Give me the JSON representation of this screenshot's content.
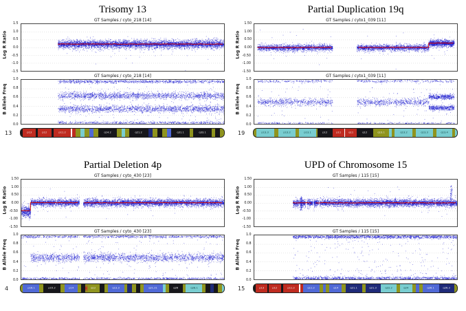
{
  "colors": {
    "point_blue": "#1212cc",
    "median_red": "#cf0f0f",
    "grid": "#c9c9c9",
    "plot_border": "#444444",
    "ideogram_palette": {
      "olive": "#8f941e",
      "cyan": "#79cdd0",
      "blue": "#5069d6",
      "navy": "#1e2a78",
      "black": "#17171b",
      "red": "#bf2b20",
      "white": "#ffffff"
    }
  },
  "chart_data": [
    {
      "id": "trisomy-13",
      "type": "scatter",
      "title": "Trisomy 13",
      "chromosome": "13",
      "lrr": {
        "header": "GT Samples / cyto_218 [14]",
        "ylabel": "Log R Ratio",
        "ylim": [
          -1.5,
          1.5
        ],
        "clampY": [
          -1.45,
          1.45
        ],
        "yticks": [
          "1.5",
          "1.0",
          "0.5",
          "0.0",
          "-0.5",
          "-1.0",
          "-1.5"
        ],
        "gaps": [],
        "clouds": [
          {
            "x0": 0.18,
            "x1": 1.0,
            "mean": 0.22,
            "sd": 0.14,
            "n": 4200
          },
          {
            "x0": 0.18,
            "x1": 1.0,
            "mean": 0.22,
            "sd": 0.05,
            "n": 1500
          },
          {
            "x0": 0.18,
            "x1": 1.0,
            "mean": -0.15,
            "sd": 0.5,
            "n": 45
          }
        ],
        "median": [
          {
            "x0": 0.18,
            "x1": 1.0,
            "y": 0.22
          }
        ]
      },
      "baf": {
        "header": "GT Samples / cyto_218 [14]",
        "ylabel": "B Allele Freq",
        "ylim": [
          0,
          1
        ],
        "clampY": [
          0.004,
          0.997
        ],
        "yticks": [
          "1.0",
          "0.8",
          "0.6",
          "0.4",
          "0.2",
          "0.0"
        ],
        "gaps": [],
        "clouds": [
          {
            "x0": 0.18,
            "x1": 1.0,
            "mean": 0.965,
            "sd": 0.018,
            "n": 900
          },
          {
            "x0": 0.18,
            "x1": 1.0,
            "mean": 0.645,
            "sd": 0.04,
            "n": 1700
          },
          {
            "x0": 0.18,
            "x1": 1.0,
            "mean": 0.345,
            "sd": 0.04,
            "n": 1700
          },
          {
            "x0": 0.18,
            "x1": 1.0,
            "mean": 0.03,
            "sd": 0.015,
            "n": 600
          },
          {
            "x0": 0.18,
            "x1": 1.0,
            "uniform": [
              0.08,
              0.92
            ],
            "n": 130
          }
        ],
        "median": []
      },
      "ideogram": [
        {
          "w": 0.018,
          "c": "black"
        },
        {
          "w": 0.045,
          "c": "red",
          "l": "p13"
        },
        {
          "w": 0.018,
          "c": "black"
        },
        {
          "w": 0.05,
          "c": "red",
          "l": "p12"
        },
        {
          "w": 0.02,
          "c": "black"
        },
        {
          "w": 0.045,
          "c": "red",
          "l": "p11.2"
        },
        {
          "w": 0.012,
          "c": "white",
          "t": "gap"
        },
        {
          "w": 0.03,
          "c": "red"
        },
        {
          "w": 0.04,
          "c": "olive"
        },
        {
          "w": 0.035,
          "c": "cyan"
        },
        {
          "w": 0.045,
          "c": "olive"
        },
        {
          "w": 0.035,
          "c": "blue"
        },
        {
          "w": 0.04,
          "c": "olive"
        },
        {
          "w": 0.06,
          "c": "black",
          "l": "q14.2"
        },
        {
          "w": 0.04,
          "c": "olive"
        },
        {
          "w": 0.03,
          "c": "cyan"
        },
        {
          "w": 0.035,
          "c": "olive"
        },
        {
          "w": 0.065,
          "c": "black",
          "l": "q21.2"
        },
        {
          "w": 0.035,
          "c": "navy"
        },
        {
          "w": 0.04,
          "c": "olive"
        },
        {
          "w": 0.045,
          "c": "black"
        },
        {
          "w": 0.04,
          "c": "olive"
        },
        {
          "w": 0.035,
          "c": "blue"
        },
        {
          "w": 0.06,
          "c": "black",
          "l": "q31.1"
        },
        {
          "w": 0.03,
          "c": "olive"
        },
        {
          "w": 0.055,
          "c": "black",
          "l": "q33.1"
        },
        {
          "w": 0.035,
          "c": "olive"
        },
        {
          "w": 0.04,
          "c": "black"
        },
        {
          "w": 0.035,
          "c": "olive"
        }
      ]
    },
    {
      "id": "partial-duplication-19q",
      "type": "scatter",
      "title": "Partial Duplication 19q",
      "chromosome": "19",
      "lrr": {
        "header": "GT Samples / cyto1_039 [11]",
        "ylabel": "Log R Ratio",
        "ylim": [
          -1.5,
          1.5
        ],
        "clampY": [
          -1.45,
          1.45
        ],
        "yticks": [
          "1.50",
          "1.00",
          "0.50",
          "0.00",
          "-0.50",
          "-1.00",
          "-1.50"
        ],
        "gaps": [
          [
            0.385,
            0.505
          ]
        ],
        "clouds": [
          {
            "x0": 0.015,
            "x1": 0.86,
            "mean": 0.0,
            "sd": 0.11,
            "n": 3300
          },
          {
            "x0": 0.015,
            "x1": 0.86,
            "mean": 0.0,
            "sd": 0.04,
            "n": 1200
          },
          {
            "x0": 0.86,
            "x1": 0.985,
            "mean": 0.28,
            "sd": 0.13,
            "n": 800
          },
          {
            "x0": 0.86,
            "x1": 0.985,
            "mean": 0.28,
            "sd": 0.05,
            "n": 300
          },
          {
            "x0": 0.015,
            "x1": 0.985,
            "mean": 0.0,
            "sd": 0.5,
            "n": 50
          }
        ],
        "median": [
          {
            "x0": 0.015,
            "x1": 0.86,
            "y": 0.0
          },
          {
            "x0": 0.86,
            "x1": 0.985,
            "y": 0.28
          }
        ]
      },
      "baf": {
        "header": "GT Samples / cyto1_039 [11]",
        "ylabel": "B Allele Freq",
        "ylim": [
          0,
          1
        ],
        "clampY": [
          0.004,
          0.997
        ],
        "yticks": [
          "1.0",
          "0.8",
          "0.6",
          "0.4",
          "0.2",
          "0.0"
        ],
        "gaps": [
          [
            0.385,
            0.505
          ]
        ],
        "clouds": [
          {
            "x0": 0.015,
            "x1": 0.985,
            "mean": 0.975,
            "sd": 0.015,
            "n": 500
          },
          {
            "x0": 0.015,
            "x1": 0.86,
            "mean": 0.5,
            "sd": 0.04,
            "n": 1500
          },
          {
            "x0": 0.86,
            "x1": 0.985,
            "mean": 0.62,
            "sd": 0.03,
            "n": 420
          },
          {
            "x0": 0.86,
            "x1": 0.985,
            "mean": 0.37,
            "sd": 0.03,
            "n": 420
          },
          {
            "x0": 0.015,
            "x1": 0.985,
            "mean": 0.02,
            "sd": 0.012,
            "n": 400
          },
          {
            "x0": 0.015,
            "x1": 0.985,
            "uniform": [
              0.06,
              0.94
            ],
            "n": 110
          }
        ],
        "median": []
      },
      "ideogram": [
        {
          "w": 0.035,
          "c": "olive"
        },
        {
          "w": 0.07,
          "c": "cyan",
          "l": "p13.3"
        },
        {
          "w": 0.05,
          "c": "olive"
        },
        {
          "w": 0.07,
          "c": "cyan",
          "l": "p13.2"
        },
        {
          "w": 0.04,
          "c": "olive"
        },
        {
          "w": 0.06,
          "c": "cyan",
          "l": "p13.1"
        },
        {
          "w": 0.02,
          "c": "olive"
        },
        {
          "w": 0.09,
          "c": "black",
          "l": "p12"
        },
        {
          "w": 0.045,
          "c": "red",
          "l": "p11"
        },
        {
          "w": 0.01,
          "c": "white",
          "t": "gap"
        },
        {
          "w": 0.045,
          "c": "red",
          "l": "q11"
        },
        {
          "w": 0.1,
          "c": "black",
          "l": "q12"
        },
        {
          "w": 0.05,
          "c": "olive",
          "l": "q13.1"
        },
        {
          "w": 0.03,
          "c": "cyan"
        },
        {
          "w": 0.04,
          "c": "olive"
        },
        {
          "w": 0.07,
          "c": "cyan",
          "l": "q13.2"
        },
        {
          "w": 0.04,
          "c": "olive"
        },
        {
          "w": 0.065,
          "c": "cyan",
          "l": "q13.3"
        },
        {
          "w": 0.04,
          "c": "olive"
        },
        {
          "w": 0.055,
          "c": "cyan",
          "l": "q13.4"
        },
        {
          "w": 0.03,
          "c": "olive"
        },
        {
          "w": 0.025,
          "c": "cyan"
        }
      ]
    },
    {
      "id": "partial-deletion-4p",
      "type": "scatter",
      "title": "Partial Deletion 4p",
      "chromosome": "4",
      "lrr": {
        "header": "GT Samples / cyto_430 [23]",
        "ylabel": "Log R Ratio",
        "ylim": [
          -1.5,
          1.5
        ],
        "clampY": [
          -1.45,
          1.45
        ],
        "yticks": [
          "1.50",
          "1.00",
          "0.50",
          "0.00",
          "-0.50",
          "-1.00",
          "-1.50"
        ],
        "gaps": [
          [
            0.285,
            0.305
          ]
        ],
        "clouds": [
          {
            "x0": 0.0,
            "x1": 0.045,
            "mean": -0.52,
            "sd": 0.2,
            "n": 380
          },
          {
            "x0": 0.045,
            "x1": 1.0,
            "mean": 0.03,
            "sd": 0.13,
            "n": 4300
          },
          {
            "x0": 0.045,
            "x1": 1.0,
            "mean": 0.03,
            "sd": 0.05,
            "n": 1500
          },
          {
            "x0": 0.0,
            "x1": 1.0,
            "mean": -0.1,
            "sd": 0.5,
            "n": 55
          }
        ],
        "median": [
          {
            "x0": 0.0,
            "x1": 0.045,
            "y": -0.5
          },
          {
            "x0": 0.045,
            "x1": 1.0,
            "y": 0.02
          }
        ]
      },
      "baf": {
        "header": "GT Samples / cyto_430 [23]",
        "ylabel": "B Allele Freq",
        "ylim": [
          0,
          1
        ],
        "clampY": [
          0.004,
          0.997
        ],
        "yticks": [
          "1.0",
          "0.8",
          "0.6",
          "0.4",
          "0.2",
          "0.0"
        ],
        "gaps": [
          [
            0.285,
            0.305
          ]
        ],
        "clouds": [
          {
            "x0": 0.0,
            "x1": 1.0,
            "mean": 0.975,
            "sd": 0.015,
            "n": 800
          },
          {
            "x0": 0.045,
            "x1": 1.0,
            "mean": 0.5,
            "sd": 0.045,
            "n": 2100
          },
          {
            "x0": 0.0,
            "x1": 1.0,
            "mean": 0.025,
            "sd": 0.013,
            "n": 700
          },
          {
            "x0": 0.0,
            "x1": 1.0,
            "uniform": [
              0.08,
              0.92
            ],
            "n": 150
          }
        ],
        "median": []
      },
      "ideogram": [
        {
          "w": 0.02,
          "c": "olive"
        },
        {
          "w": 0.045,
          "c": "blue",
          "l": "p16.1"
        },
        {
          "w": 0.035,
          "c": "olive"
        },
        {
          "w": 0.05,
          "c": "black",
          "l": "p15.2"
        },
        {
          "w": 0.04,
          "c": "olive"
        },
        {
          "w": 0.045,
          "c": "blue",
          "l": "p14"
        },
        {
          "w": 0.035,
          "c": "olive"
        },
        {
          "w": 0.035,
          "c": "black"
        },
        {
          "w": 0.022,
          "c": "red",
          "t": "x"
        },
        {
          "w": 0.04,
          "c": "olive",
          "l": "q12"
        },
        {
          "w": 0.045,
          "c": "black"
        },
        {
          "w": 0.035,
          "c": "olive"
        },
        {
          "w": 0.04,
          "c": "blue",
          "l": "q13.3"
        },
        {
          "w": 0.03,
          "c": "olive"
        },
        {
          "w": 0.045,
          "c": "navy"
        },
        {
          "w": 0.035,
          "c": "olive"
        },
        {
          "w": 0.04,
          "c": "black"
        },
        {
          "w": 0.03,
          "c": "olive"
        },
        {
          "w": 0.045,
          "c": "blue",
          "l": "q21.21"
        },
        {
          "w": 0.025,
          "c": "cyan"
        },
        {
          "w": 0.035,
          "c": "olive"
        },
        {
          "w": 0.05,
          "c": "black",
          "l": "q26"
        },
        {
          "w": 0.03,
          "c": "olive"
        },
        {
          "w": 0.04,
          "c": "cyan",
          "l": "q28.1"
        },
        {
          "w": 0.035,
          "c": "olive"
        },
        {
          "w": 0.045,
          "c": "black"
        },
        {
          "w": 0.03,
          "c": "navy"
        },
        {
          "w": 0.04,
          "c": "black"
        },
        {
          "w": 0.035,
          "c": "olive"
        },
        {
          "w": 0.02,
          "c": "cyan"
        }
      ]
    },
    {
      "id": "upd-chromosome-15",
      "type": "scatter",
      "title": "UPD of Chromosome 15",
      "chromosome": "15",
      "lrr": {
        "header": "GT Samples / 115 [15]",
        "ylabel": "Log R Ratio",
        "ylim": [
          -1.5,
          1.5
        ],
        "clampY": [
          -1.45,
          1.45
        ],
        "yticks": [
          "1.50",
          "1.00",
          "0.50",
          "0.00",
          "-0.50",
          "-1.00",
          "-1.50"
        ],
        "gaps": [
          [
            0.252,
            0.258
          ],
          [
            0.287,
            0.292
          ],
          [
            0.316,
            0.321
          ]
        ],
        "clouds": [
          {
            "x0": 0.19,
            "x1": 1.0,
            "mean": 0.02,
            "sd": 0.13,
            "n": 3900
          },
          {
            "x0": 0.19,
            "x1": 1.0,
            "mean": 0.02,
            "sd": 0.05,
            "n": 1300
          },
          {
            "x0": 0.19,
            "x1": 1.0,
            "mean": 0.0,
            "sd": 0.45,
            "n": 60
          },
          {
            "x0": 0.225,
            "x1": 0.235,
            "uniform": [
              -0.45,
              0.45
            ],
            "n": 90
          },
          {
            "x0": 0.965,
            "x1": 0.975,
            "uniform": [
              -0.2,
              1.15
            ],
            "n": 70
          }
        ],
        "median": [
          {
            "x0": 0.19,
            "x1": 1.0,
            "y": 0.01
          }
        ]
      },
      "baf": {
        "header": "GT Samples / 115 [15]",
        "ylabel": "B Allele Freq",
        "ylim": [
          0,
          1
        ],
        "clampY": [
          0.004,
          0.997
        ],
        "yticks": [
          "1.0",
          "0.8",
          "0.6",
          "0.4",
          "0.2",
          "0.0"
        ],
        "gaps": [],
        "clouds": [
          {
            "x0": 0.19,
            "x1": 1.0,
            "mean": 0.97,
            "sd": 0.02,
            "n": 1400
          },
          {
            "x0": 0.19,
            "x1": 1.0,
            "mean": 0.03,
            "sd": 0.02,
            "n": 1100
          },
          {
            "x0": 0.19,
            "x1": 1.0,
            "uniform": [
              0.08,
              0.92
            ],
            "n": 200
          }
        ],
        "median": []
      },
      "ideogram": [
        {
          "w": 0.022,
          "c": "black"
        },
        {
          "w": 0.045,
          "c": "red",
          "l": "p13"
        },
        {
          "w": 0.02,
          "c": "black"
        },
        {
          "w": 0.05,
          "c": "red",
          "l": "p12"
        },
        {
          "w": 0.025,
          "c": "black"
        },
        {
          "w": 0.05,
          "c": "red",
          "l": "p11.2"
        },
        {
          "w": 0.012,
          "c": "white",
          "t": "gap"
        },
        {
          "w": 0.035,
          "c": "red"
        },
        {
          "w": 0.05,
          "c": "blue",
          "l": "q11.2"
        },
        {
          "w": 0.04,
          "c": "olive"
        },
        {
          "w": 0.035,
          "c": "blue"
        },
        {
          "w": 0.045,
          "c": "olive"
        },
        {
          "w": 0.05,
          "c": "blue",
          "l": "q14"
        },
        {
          "w": 0.05,
          "c": "olive"
        },
        {
          "w": 0.05,
          "c": "navy",
          "l": "q21.1"
        },
        {
          "w": 0.04,
          "c": "olive"
        },
        {
          "w": 0.045,
          "c": "navy",
          "l": "q21.3"
        },
        {
          "w": 0.04,
          "c": "cyan",
          "l": "q22.2"
        },
        {
          "w": 0.045,
          "c": "olive"
        },
        {
          "w": 0.05,
          "c": "cyan",
          "l": "q24"
        },
        {
          "w": 0.045,
          "c": "olive"
        },
        {
          "w": 0.035,
          "c": "blue"
        },
        {
          "w": 0.045,
          "c": "olive"
        },
        {
          "w": 0.05,
          "c": "blue",
          "l": "q26.1"
        },
        {
          "w": 0.04,
          "c": "navy",
          "l": "q26.3"
        },
        {
          "w": 0.035,
          "c": "olive"
        }
      ]
    }
  ]
}
